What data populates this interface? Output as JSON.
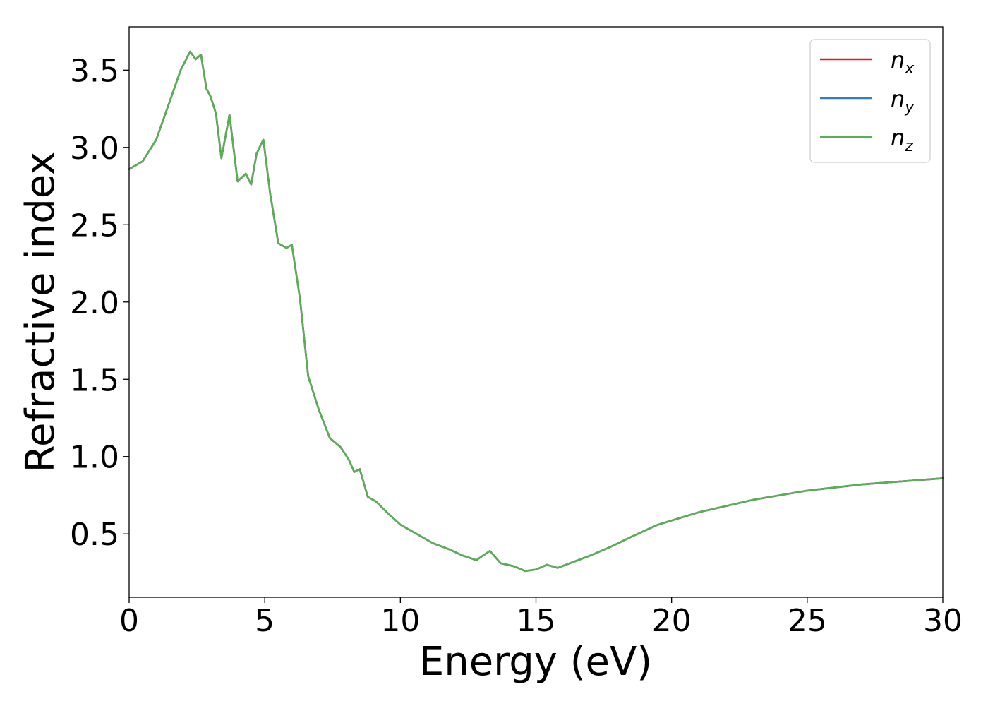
{
  "chart_data": {
    "type": "line",
    "xlabel": "Energy (eV)",
    "ylabel": "Refractive index",
    "xlim": [
      0,
      30
    ],
    "ylim": [
      0.09,
      3.78
    ],
    "xticks": [
      "0",
      "5",
      "10",
      "15",
      "20",
      "25",
      "30"
    ],
    "yticks": [
      "0.5",
      "1.0",
      "1.5",
      "2.0",
      "2.5",
      "3.0",
      "3.5"
    ],
    "grid": false,
    "legend_position": "top-right",
    "series": [
      {
        "name": "n_x",
        "legend_main": "n",
        "legend_sub": "x",
        "color": "#e41a1c",
        "x": [
          0,
          0.5,
          1.0,
          1.5,
          1.9,
          2.25,
          2.45,
          2.65,
          2.85,
          3.0,
          3.2,
          3.4,
          3.7,
          4.0,
          4.3,
          4.5,
          4.7,
          4.95,
          5.2,
          5.5,
          5.8,
          6.0,
          6.3,
          6.6,
          7.0,
          7.4,
          7.8,
          8.1,
          8.3,
          8.5,
          8.8,
          9.1,
          9.5,
          10.0,
          10.6,
          11.2,
          11.8,
          12.3,
          12.8,
          13.3,
          13.7,
          14.2,
          14.6,
          15.0,
          15.4,
          15.8,
          16.4,
          17.0,
          17.8,
          18.5,
          19.5,
          21.0,
          23.0,
          25.0,
          27.0,
          30.0
        ],
        "y": [
          2.86,
          2.91,
          3.05,
          3.3,
          3.5,
          3.62,
          3.57,
          3.6,
          3.38,
          3.33,
          3.22,
          2.93,
          3.21,
          2.78,
          2.83,
          2.76,
          2.96,
          3.05,
          2.7,
          2.38,
          2.35,
          2.37,
          2.02,
          1.52,
          1.3,
          1.12,
          1.06,
          0.98,
          0.9,
          0.92,
          0.74,
          0.71,
          0.64,
          0.56,
          0.5,
          0.44,
          0.4,
          0.36,
          0.33,
          0.39,
          0.31,
          0.29,
          0.26,
          0.27,
          0.3,
          0.28,
          0.32,
          0.36,
          0.42,
          0.48,
          0.56,
          0.64,
          0.72,
          0.78,
          0.82,
          0.86
        ]
      },
      {
        "name": "n_y",
        "legend_main": "n",
        "legend_sub": "y",
        "color": "#377eb8",
        "x": [
          0,
          0.5,
          1.0,
          1.5,
          1.9,
          2.25,
          2.45,
          2.65,
          2.85,
          3.0,
          3.2,
          3.4,
          3.7,
          4.0,
          4.3,
          4.5,
          4.7,
          4.95,
          5.2,
          5.5,
          5.8,
          6.0,
          6.3,
          6.6,
          7.0,
          7.4,
          7.8,
          8.1,
          8.3,
          8.5,
          8.8,
          9.1,
          9.5,
          10.0,
          10.6,
          11.2,
          11.8,
          12.3,
          12.8,
          13.3,
          13.7,
          14.2,
          14.6,
          15.0,
          15.4,
          15.8,
          16.4,
          17.0,
          17.8,
          18.5,
          19.5,
          21.0,
          23.0,
          25.0,
          27.0,
          30.0
        ],
        "y": [
          2.86,
          2.91,
          3.05,
          3.3,
          3.5,
          3.62,
          3.57,
          3.6,
          3.38,
          3.33,
          3.22,
          2.93,
          3.21,
          2.78,
          2.83,
          2.76,
          2.96,
          3.05,
          2.7,
          2.38,
          2.35,
          2.37,
          2.02,
          1.52,
          1.3,
          1.12,
          1.06,
          0.98,
          0.9,
          0.92,
          0.74,
          0.71,
          0.64,
          0.56,
          0.5,
          0.44,
          0.4,
          0.36,
          0.33,
          0.39,
          0.31,
          0.29,
          0.26,
          0.27,
          0.3,
          0.28,
          0.32,
          0.36,
          0.42,
          0.48,
          0.56,
          0.64,
          0.72,
          0.78,
          0.82,
          0.86
        ]
      },
      {
        "name": "n_z",
        "legend_main": "n",
        "legend_sub": "z",
        "color": "#5aaf55",
        "x": [
          0,
          0.5,
          1.0,
          1.5,
          1.9,
          2.25,
          2.45,
          2.65,
          2.85,
          3.0,
          3.2,
          3.4,
          3.7,
          4.0,
          4.3,
          4.5,
          4.7,
          4.95,
          5.2,
          5.5,
          5.8,
          6.0,
          6.3,
          6.6,
          7.0,
          7.4,
          7.8,
          8.1,
          8.3,
          8.5,
          8.8,
          9.1,
          9.5,
          10.0,
          10.6,
          11.2,
          11.8,
          12.3,
          12.8,
          13.3,
          13.7,
          14.2,
          14.6,
          15.0,
          15.4,
          15.8,
          16.4,
          17.0,
          17.8,
          18.5,
          19.5,
          21.0,
          23.0,
          25.0,
          27.0,
          30.0
        ],
        "y": [
          2.86,
          2.91,
          3.05,
          3.3,
          3.5,
          3.62,
          3.57,
          3.6,
          3.38,
          3.33,
          3.22,
          2.93,
          3.21,
          2.78,
          2.83,
          2.76,
          2.96,
          3.05,
          2.7,
          2.38,
          2.35,
          2.37,
          2.02,
          1.52,
          1.3,
          1.12,
          1.06,
          0.98,
          0.9,
          0.92,
          0.74,
          0.71,
          0.64,
          0.56,
          0.5,
          0.44,
          0.4,
          0.36,
          0.33,
          0.39,
          0.31,
          0.29,
          0.26,
          0.27,
          0.3,
          0.28,
          0.32,
          0.36,
          0.42,
          0.48,
          0.56,
          0.64,
          0.72,
          0.78,
          0.82,
          0.86
        ]
      }
    ]
  }
}
